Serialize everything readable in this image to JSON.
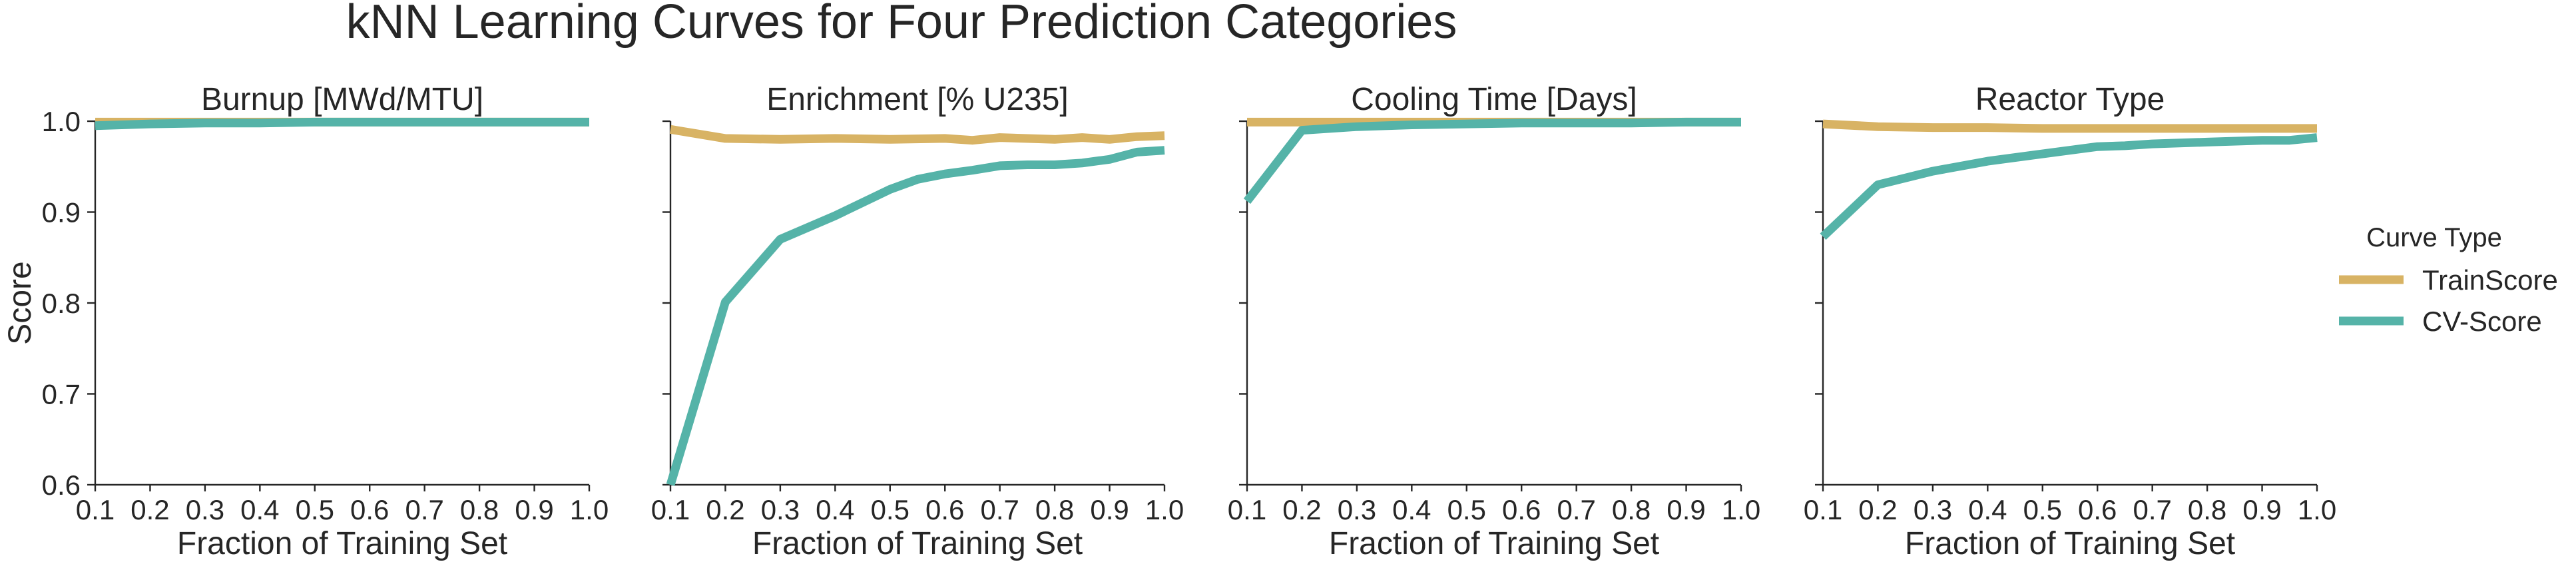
{
  "figure": {
    "title": "kNN Learning Curves for Four Prediction Categories"
  },
  "legend": {
    "title": "Curve Type",
    "placement": "right"
  },
  "colors": {
    "train": "#d8b364",
    "cv": "#55b3a8",
    "axis": "#262626"
  },
  "chart_data": [
    {
      "type": "line",
      "title": "Burnup [MWd/MTU]",
      "xlabel": "Fraction of Training Set",
      "ylabel": "Score",
      "xlim": [
        0.1,
        1.0
      ],
      "ylim": [
        0.6,
        1.0
      ],
      "xticks": [
        "0.1",
        "0.2",
        "0.3",
        "0.4",
        "0.5",
        "0.6",
        "0.7",
        "0.8",
        "0.9",
        "1.0"
      ],
      "yticks": [
        "0.6",
        "0.7",
        "0.8",
        "0.9",
        "1.0"
      ],
      "grid": false,
      "series": [
        {
          "name": "TrainScore",
          "x": [
            0.1,
            0.2,
            0.3,
            0.4,
            0.5,
            0.6,
            0.7,
            0.8,
            0.9,
            1.0
          ],
          "values": [
            0.999,
            0.999,
            0.999,
            0.999,
            0.999,
            0.999,
            0.999,
            0.999,
            0.999,
            0.999
          ]
        },
        {
          "name": "CV-Score",
          "x": [
            0.1,
            0.2,
            0.3,
            0.4,
            0.5,
            0.6,
            0.7,
            0.8,
            0.9,
            1.0
          ],
          "values": [
            0.995,
            0.997,
            0.998,
            0.998,
            0.999,
            0.999,
            0.999,
            0.999,
            0.999,
            0.999
          ]
        }
      ]
    },
    {
      "type": "line",
      "title": "Enrichment [% U235]",
      "xlabel": "Fraction of Training Set",
      "ylabel": "",
      "xlim": [
        0.1,
        1.0
      ],
      "ylim": [
        0.6,
        1.0
      ],
      "xticks": [
        "0.1",
        "0.2",
        "0.3",
        "0.4",
        "0.5",
        "0.6",
        "0.7",
        "0.8",
        "0.9",
        "1.0"
      ],
      "yticks": [],
      "grid": false,
      "series": [
        {
          "name": "TrainScore",
          "x": [
            0.1,
            0.2,
            0.3,
            0.4,
            0.5,
            0.6,
            0.65,
            0.7,
            0.8,
            0.85,
            0.9,
            0.95,
            1.0
          ],
          "values": [
            0.991,
            0.981,
            0.98,
            0.981,
            0.98,
            0.981,
            0.979,
            0.982,
            0.98,
            0.982,
            0.98,
            0.983,
            0.984
          ]
        },
        {
          "name": "CV-Score",
          "x": [
            0.1,
            0.2,
            0.3,
            0.4,
            0.5,
            0.55,
            0.6,
            0.65,
            0.7,
            0.75,
            0.8,
            0.85,
            0.9,
            0.95,
            1.0
          ],
          "values": [
            0.6,
            0.801,
            0.87,
            0.896,
            0.925,
            0.936,
            0.942,
            0.946,
            0.951,
            0.952,
            0.952,
            0.954,
            0.958,
            0.966,
            0.968
          ]
        }
      ]
    },
    {
      "type": "line",
      "title": "Cooling Time [Days]",
      "xlabel": "Fraction of Training Set",
      "ylabel": "",
      "xlim": [
        0.1,
        1.0
      ],
      "ylim": [
        0.6,
        1.0
      ],
      "xticks": [
        "0.1",
        "0.2",
        "0.3",
        "0.4",
        "0.5",
        "0.6",
        "0.7",
        "0.8",
        "0.9",
        "1.0"
      ],
      "yticks": [],
      "grid": false,
      "series": [
        {
          "name": "TrainScore",
          "x": [
            0.1,
            0.2,
            0.3,
            0.4,
            0.5,
            0.6,
            0.7,
            0.8,
            0.9,
            1.0
          ],
          "values": [
            0.999,
            0.999,
            0.999,
            0.999,
            0.999,
            0.999,
            0.999,
            0.999,
            0.999,
            0.999
          ]
        },
        {
          "name": "CV-Score",
          "x": [
            0.1,
            0.2,
            0.3,
            0.4,
            0.5,
            0.6,
            0.7,
            0.8,
            0.9,
            1.0
          ],
          "values": [
            0.912,
            0.99,
            0.994,
            0.996,
            0.997,
            0.998,
            0.998,
            0.998,
            0.999,
            0.999
          ]
        }
      ]
    },
    {
      "type": "line",
      "title": "Reactor Type",
      "xlabel": "Fraction of Training Set",
      "ylabel": "",
      "xlim": [
        0.1,
        1.0
      ],
      "ylim": [
        0.6,
        1.0
      ],
      "xticks": [
        "0.1",
        "0.2",
        "0.3",
        "0.4",
        "0.5",
        "0.6",
        "0.7",
        "0.8",
        "0.9",
        "1.0"
      ],
      "yticks": [],
      "grid": false,
      "series": [
        {
          "name": "TrainScore",
          "x": [
            0.1,
            0.2,
            0.3,
            0.4,
            0.5,
            0.6,
            0.7,
            0.8,
            0.9,
            1.0
          ],
          "values": [
            0.997,
            0.994,
            0.993,
            0.993,
            0.992,
            0.992,
            0.992,
            0.992,
            0.992,
            0.992
          ]
        },
        {
          "name": "CV-Score",
          "x": [
            0.1,
            0.2,
            0.3,
            0.4,
            0.5,
            0.6,
            0.65,
            0.7,
            0.8,
            0.9,
            0.95,
            1.0
          ],
          "values": [
            0.873,
            0.93,
            0.945,
            0.956,
            0.964,
            0.972,
            0.973,
            0.975,
            0.977,
            0.979,
            0.979,
            0.982
          ]
        }
      ]
    }
  ]
}
